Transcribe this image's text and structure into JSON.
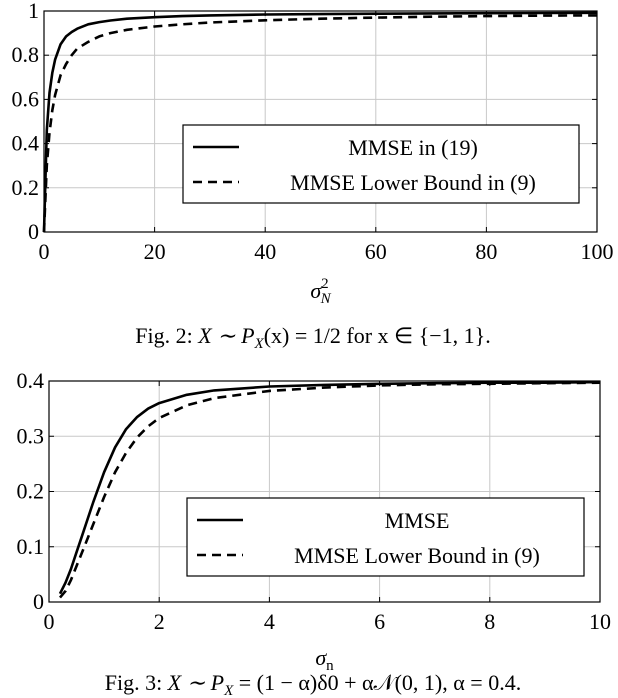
{
  "chart_data": [
    {
      "type": "line",
      "xlabel": "σ²_N",
      "ylabel": "",
      "xlim": [
        0,
        100
      ],
      "ylim": [
        0,
        1
      ],
      "xticks": [
        "0",
        "20",
        "40",
        "60",
        "80",
        "100"
      ],
      "yticks": [
        "0",
        "0.2",
        "0.4",
        "0.6",
        "0.8",
        "1"
      ],
      "grid": true,
      "legend_position": "center-right",
      "series": [
        {
          "name": "MMSE in (19)",
          "style": "solid",
          "x": [
            0,
            0.5,
            1,
            1.5,
            2,
            3,
            4,
            5,
            6,
            8,
            10,
            12,
            15,
            20,
            25,
            30,
            40,
            50,
            60,
            70,
            80,
            90,
            100
          ],
          "y": [
            0,
            0.46,
            0.63,
            0.72,
            0.78,
            0.85,
            0.885,
            0.905,
            0.92,
            0.94,
            0.95,
            0.957,
            0.965,
            0.972,
            0.977,
            0.98,
            0.984,
            0.986,
            0.988,
            0.989,
            0.99,
            0.991,
            0.992
          ]
        },
        {
          "name": "MMSE Lower Bound in (9)",
          "style": "dashed",
          "x": [
            0,
            0.5,
            1,
            1.5,
            2,
            3,
            4,
            5,
            6,
            8,
            10,
            12,
            15,
            20,
            25,
            30,
            40,
            50,
            60,
            70,
            80,
            90,
            100
          ],
          "y": [
            0,
            0.3,
            0.45,
            0.55,
            0.62,
            0.71,
            0.76,
            0.8,
            0.83,
            0.86,
            0.885,
            0.9,
            0.915,
            0.93,
            0.94,
            0.948,
            0.958,
            0.965,
            0.97,
            0.974,
            0.977,
            0.979,
            0.98
          ]
        }
      ]
    },
    {
      "type": "line",
      "xlabel": "σn",
      "ylabel": "",
      "xlim": [
        0,
        10
      ],
      "ylim": [
        0,
        0.4
      ],
      "xticks": [
        "0",
        "2",
        "4",
        "6",
        "8",
        "10"
      ],
      "yticks": [
        "0",
        "0.1",
        "0.2",
        "0.3",
        "0.4"
      ],
      "grid": true,
      "legend_position": "center-right",
      "series": [
        {
          "name": "MMSE",
          "style": "solid",
          "x": [
            0.2,
            0.3,
            0.4,
            0.5,
            0.6,
            0.7,
            0.8,
            1.0,
            1.2,
            1.4,
            1.6,
            1.8,
            2.0,
            2.5,
            3.0,
            4.0,
            5.0,
            6.0,
            7.0,
            8.0,
            9.0,
            10.0
          ],
          "y": [
            0.015,
            0.035,
            0.06,
            0.09,
            0.12,
            0.15,
            0.18,
            0.235,
            0.28,
            0.313,
            0.335,
            0.35,
            0.36,
            0.375,
            0.383,
            0.39,
            0.393,
            0.395,
            0.396,
            0.397,
            0.397,
            0.398
          ]
        },
        {
          "name": "MMSE Lower Bound in (9)",
          "style": "dashed",
          "x": [
            0.2,
            0.3,
            0.4,
            0.5,
            0.6,
            0.7,
            0.8,
            1.0,
            1.2,
            1.4,
            1.6,
            1.8,
            2.0,
            2.5,
            3.0,
            4.0,
            5.0,
            6.0,
            7.0,
            8.0,
            9.0,
            10.0
          ],
          "y": [
            0.008,
            0.02,
            0.04,
            0.065,
            0.09,
            0.115,
            0.14,
            0.19,
            0.235,
            0.27,
            0.298,
            0.318,
            0.333,
            0.356,
            0.369,
            0.382,
            0.388,
            0.392,
            0.394,
            0.395,
            0.396,
            0.397
          ]
        }
      ]
    }
  ],
  "captions": {
    "fig2_prefix": "Fig. 2: ",
    "fig2_math": "X ∼ P",
    "fig2_sub": "X",
    "fig2_rest": "(x) = 1/2 for x ∈ {−1, 1}.",
    "fig3_prefix": "Fig. 3: ",
    "fig3_math": "X ∼ P",
    "fig3_sub": "X",
    "fig3_rest": " = (1 − α)δ0 + α𝒩(0, 1),  α = 0.4."
  }
}
